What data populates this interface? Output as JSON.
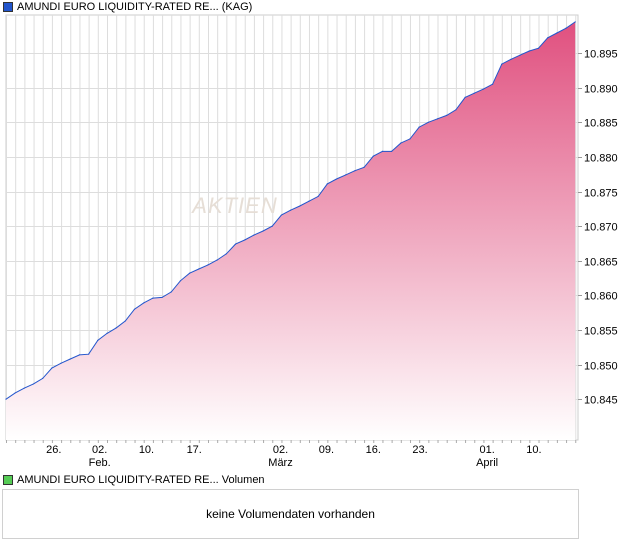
{
  "chart_data": {
    "type": "area",
    "title": "AMUNDI EURO LIQUIDITY-RATED RE... (KAG)",
    "watermark": "AKTIEN",
    "x_unit": "trading day index",
    "values": [
      10.845,
      10.8459,
      10.8466,
      10.8472,
      10.848,
      10.8495,
      10.8502,
      10.8508,
      10.8514,
      10.8515,
      10.8535,
      10.8545,
      10.8553,
      10.8563,
      10.858,
      10.8589,
      10.8596,
      10.8597,
      10.8605,
      10.8621,
      10.8632,
      10.8638,
      10.8644,
      10.8651,
      10.866,
      10.8674,
      10.868,
      10.8687,
      10.8693,
      10.87,
      10.8716,
      10.8723,
      10.8729,
      10.8736,
      10.8743,
      10.8761,
      10.8768,
      10.8774,
      10.878,
      10.8785,
      10.8801,
      10.8808,
      10.8808,
      10.882,
      10.8826,
      10.8843,
      10.885,
      10.8855,
      10.886,
      10.8868,
      10.8886,
      10.8892,
      10.8898,
      10.8905,
      10.8934,
      10.8941,
      10.8947,
      10.8953,
      10.8957,
      10.8972,
      10.8979,
      10.8986,
      10.8995
    ],
    "xlim": [
      0,
      62.3
    ],
    "ylim": [
      10.8391,
      10.9005
    ],
    "yticks": [
      "10.845",
      "10.850",
      "10.855",
      "10.860",
      "10.865",
      "10.870",
      "10.875",
      "10.880",
      "10.885",
      "10.890",
      "10.895"
    ],
    "xticks": [
      {
        "day": 5.2,
        "label": "26.",
        "month": ""
      },
      {
        "day": 10.2,
        "label": "02.",
        "month": "Feb."
      },
      {
        "day": 15.3,
        "label": "10.",
        "month": ""
      },
      {
        "day": 20.5,
        "label": "17.",
        "month": ""
      },
      {
        "day": 29.9,
        "label": "02.",
        "month": "März"
      },
      {
        "day": 34.9,
        "label": "09.",
        "month": ""
      },
      {
        "day": 40.0,
        "label": "16.",
        "month": ""
      },
      {
        "day": 45.1,
        "label": "23.",
        "month": ""
      },
      {
        "day": 52.4,
        "label": "01.",
        "month": "April"
      },
      {
        "day": 57.5,
        "label": "10.",
        "month": ""
      }
    ],
    "grid": true,
    "colors": {
      "line": "#2255cc",
      "fill_top": "#e0507f",
      "fill_bottom": "#ffffff",
      "grid": "#dddddd",
      "legend_price": "#2255cc",
      "legend_volume": "#55cc55"
    }
  },
  "volume": {
    "legend": "AMUNDI EURO LIQUIDITY-RATED RE... Volumen",
    "empty_message": "keine Volumendaten vorhanden"
  }
}
